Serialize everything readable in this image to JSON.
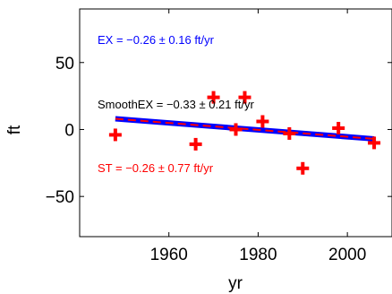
{
  "chart_data": {
    "type": "scatter",
    "title": "",
    "xlabel": "yr",
    "ylabel": "ft",
    "xlim": [
      1940,
      2010
    ],
    "ylim": [
      -80,
      90
    ],
    "grid": false,
    "x_ticks": [
      1960,
      1980,
      2000
    ],
    "x_tick_labels": [
      "1960",
      "1980",
      "2000"
    ],
    "y_ticks": [
      50,
      0,
      -50
    ],
    "y_tick_labels": [
      "50",
      "0",
      "−50"
    ],
    "colors": {
      "points": "#ff0000",
      "ex_line": "#0000ff",
      "st_line": "#ff0000",
      "smooth_text": "#000000"
    },
    "points": [
      {
        "x": 1948,
        "y": -4
      },
      {
        "x": 1966,
        "y": -11
      },
      {
        "x": 1970,
        "y": 24
      },
      {
        "x": 1975,
        "y": 0
      },
      {
        "x": 1977,
        "y": 24
      },
      {
        "x": 1981,
        "y": 6
      },
      {
        "x": 1987,
        "y": -3
      },
      {
        "x": 1990,
        "y": -29
      },
      {
        "x": 1998,
        "y": 1
      },
      {
        "x": 2006,
        "y": -10
      }
    ],
    "lines": [
      {
        "style": "solid-thick",
        "color": "#0000ff",
        "x": [
          1948,
          2006
        ],
        "y": [
          8,
          -7
        ]
      },
      {
        "style": "dashed",
        "color": "#ff0000",
        "x": [
          1948,
          2006
        ],
        "y": [
          8,
          -7
        ]
      }
    ],
    "annotations": [
      {
        "text": "EX = −0.26 ± 0.16 ft/yr",
        "color": "#0000ff"
      },
      {
        "text": "SmoothEX = −0.33 ± 0.21 ft/yr",
        "color": "#000000"
      },
      {
        "text": "ST = −0.26 ± 0.77 ft/yr",
        "color": "#ff0000"
      }
    ]
  }
}
